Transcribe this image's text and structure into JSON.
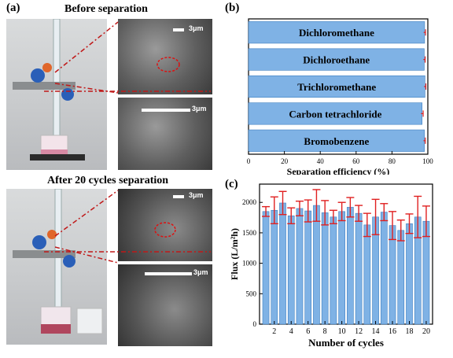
{
  "panel_a": {
    "label": "(a)",
    "title_before": "Before separation",
    "title_after": "After  20 cycles separation",
    "scale_labels": [
      "3μm",
      "3μm",
      "3μm",
      "3μm"
    ]
  },
  "panel_b": {
    "label": "(b)"
  },
  "panel_c": {
    "label": "(c)"
  },
  "colors": {
    "bar": "#7fb2e5",
    "bar_edge": "#3c7ec0",
    "error": "#e02020",
    "dash": "#c01818"
  },
  "chart_data": [
    {
      "type": "bar",
      "orientation": "horizontal",
      "categories": [
        "Dichloromethane",
        "Dichloroethane",
        "Trichloromethane",
        "Carbon tetrachloride",
        "Bromobenzene"
      ],
      "values": [
        98.2,
        98.0,
        98.4,
        96.8,
        98.1
      ],
      "errors": [
        0.5,
        0.5,
        0.5,
        0.6,
        0.5
      ],
      "xlabel": "Separation efficiency (%)",
      "xlim": [
        0,
        100
      ],
      "xticks": [
        "0",
        "20",
        "40",
        "60",
        "80",
        "100"
      ]
    },
    {
      "type": "bar",
      "categories": [
        "1",
        "2",
        "3",
        "4",
        "5",
        "6",
        "7",
        "8",
        "9",
        "10",
        "11",
        "12",
        "13",
        "14",
        "15",
        "16",
        "17",
        "18",
        "19",
        "20"
      ],
      "values": [
        1850,
        1870,
        1990,
        1780,
        1900,
        1860,
        1950,
        1830,
        1760,
        1850,
        1920,
        1820,
        1630,
        1760,
        1840,
        1620,
        1540,
        1650,
        1760,
        1690
      ],
      "errors": [
        80,
        220,
        190,
        130,
        120,
        180,
        260,
        200,
        110,
        150,
        160,
        130,
        190,
        290,
        140,
        230,
        170,
        160,
        340,
        250
      ],
      "xlabel": "Number of cycles",
      "ylabel": "Flux (L/m²h)",
      "ylim": [
        0,
        2300
      ],
      "yticks": [
        "0",
        "500",
        "1000",
        "1500",
        "2000"
      ],
      "xticks": [
        "2",
        "4",
        "6",
        "8",
        "10",
        "12",
        "14",
        "16",
        "18",
        "20"
      ]
    }
  ]
}
